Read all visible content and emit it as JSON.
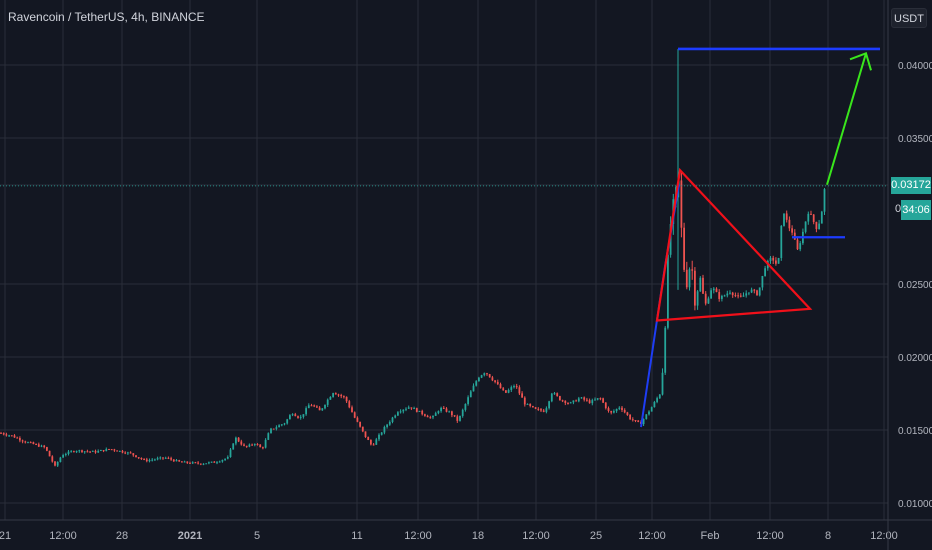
{
  "title": "Ravencoin / TetherUS, 4h, BINANCE",
  "currency_button": "USDT",
  "last_price_label": "0.03172",
  "countdown_prefix": "0",
  "countdown_label": "34:06",
  "colors": {
    "background": "#131722",
    "grid": "#2a2e39",
    "up": "#26a69a",
    "down": "#ef5350",
    "axis_text": "#b2b5be"
  },
  "chart_data": {
    "type": "candlestick",
    "title": "Ravencoin / TetherUS, 4h, BINANCE",
    "ylim": [
      0.0095,
      0.0435
    ],
    "y_ticks": [
      {
        "value": 0.04,
        "label": "0.04000"
      },
      {
        "value": 0.035,
        "label": "0.03500"
      },
      {
        "value": 0.025,
        "label": "0.02500"
      },
      {
        "value": 0.02,
        "label": "0.02000"
      },
      {
        "value": 0.015,
        "label": "0.01500"
      },
      {
        "value": 0.01,
        "label": "0.01000"
      }
    ],
    "x_ticks": [
      "21",
      "12:00",
      "28",
      "2021",
      "5",
      "11",
      "12:00",
      "18",
      "12:00",
      "25",
      "12:00",
      "Feb",
      "12:00",
      "8",
      "12:00"
    ],
    "price_path": [
      [
        0,
        0.0148
      ],
      [
        12,
        0.0146
      ],
      [
        25,
        0.0142
      ],
      [
        45,
        0.0138
      ],
      [
        55,
        0.0125
      ],
      [
        62,
        0.0133
      ],
      [
        75,
        0.0136
      ],
      [
        95,
        0.0135
      ],
      [
        110,
        0.0137
      ],
      [
        130,
        0.0134
      ],
      [
        145,
        0.0129
      ],
      [
        165,
        0.0131
      ],
      [
        180,
        0.0128
      ],
      [
        200,
        0.0127
      ],
      [
        215,
        0.0128
      ],
      [
        228,
        0.0131
      ],
      [
        235,
        0.0145
      ],
      [
        245,
        0.0138
      ],
      [
        255,
        0.0141
      ],
      [
        262,
        0.0137
      ],
      [
        270,
        0.015
      ],
      [
        285,
        0.0155
      ],
      [
        292,
        0.0162
      ],
      [
        300,
        0.0158
      ],
      [
        310,
        0.0168
      ],
      [
        320,
        0.0163
      ],
      [
        333,
        0.0176
      ],
      [
        345,
        0.0172
      ],
      [
        355,
        0.0158
      ],
      [
        365,
        0.0146
      ],
      [
        372,
        0.0139
      ],
      [
        385,
        0.0152
      ],
      [
        398,
        0.0163
      ],
      [
        410,
        0.0166
      ],
      [
        420,
        0.0162
      ],
      [
        432,
        0.0158
      ],
      [
        440,
        0.0165
      ],
      [
        450,
        0.0162
      ],
      [
        458,
        0.0156
      ],
      [
        470,
        0.0175
      ],
      [
        478,
        0.0186
      ],
      [
        485,
        0.019
      ],
      [
        495,
        0.0183
      ],
      [
        505,
        0.0175
      ],
      [
        515,
        0.0181
      ],
      [
        525,
        0.0168
      ],
      [
        535,
        0.0164
      ],
      [
        545,
        0.0163
      ],
      [
        552,
        0.0176
      ],
      [
        560,
        0.0171
      ],
      [
        570,
        0.0168
      ],
      [
        580,
        0.0172
      ],
      [
        590,
        0.0169
      ],
      [
        600,
        0.0172
      ],
      [
        610,
        0.0161
      ],
      [
        620,
        0.0166
      ],
      [
        630,
        0.0158
      ],
      [
        640,
        0.0154
      ],
      [
        652,
        0.0166
      ],
      [
        660,
        0.0175
      ],
      [
        664,
        0.02
      ],
      [
        667,
        0.0258
      ],
      [
        671,
        0.0295
      ],
      [
        675,
        0.031
      ],
      [
        679,
        0.032
      ],
      [
        683,
        0.0265
      ],
      [
        687,
        0.025
      ],
      [
        691,
        0.0268
      ],
      [
        695,
        0.0238
      ],
      [
        700,
        0.0255
      ],
      [
        705,
        0.0235
      ],
      [
        712,
        0.0248
      ],
      [
        720,
        0.024
      ],
      [
        730,
        0.0245
      ],
      [
        740,
        0.024
      ],
      [
        750,
        0.0246
      ],
      [
        758,
        0.0243
      ],
      [
        765,
        0.0262
      ],
      [
        772,
        0.0268
      ],
      [
        778,
        0.0262
      ],
      [
        783,
        0.0302
      ],
      [
        788,
        0.029
      ],
      [
        793,
        0.0285
      ],
      [
        797,
        0.0272
      ],
      [
        802,
        0.0283
      ],
      [
        808,
        0.03
      ],
      [
        812,
        0.0295
      ],
      [
        817,
        0.0288
      ],
      [
        821,
        0.0296
      ],
      [
        825,
        0.0317
      ]
    ],
    "annotations": {
      "blue_rise": [
        [
          641,
          0.0152
        ],
        [
          665,
          0.0262
        ],
        [
          679,
          0.0318
        ]
      ],
      "red_triangle": [
        [
          657,
          0.0225
        ],
        [
          810,
          0.0233
        ],
        [
          680,
          0.0328
        ]
      ],
      "target_vertical": [
        [
          678,
          0.0246
        ],
        [
          678,
          0.0411
        ]
      ],
      "target_line": [
        [
          678,
          0.0411
        ],
        [
          880,
          0.0411
        ]
      ],
      "support_line": [
        [
          792,
          0.0282
        ],
        [
          845,
          0.0282
        ]
      ],
      "green_arrow": [
        [
          827,
          0.0318
        ],
        [
          866,
          0.0408
        ]
      ]
    }
  }
}
